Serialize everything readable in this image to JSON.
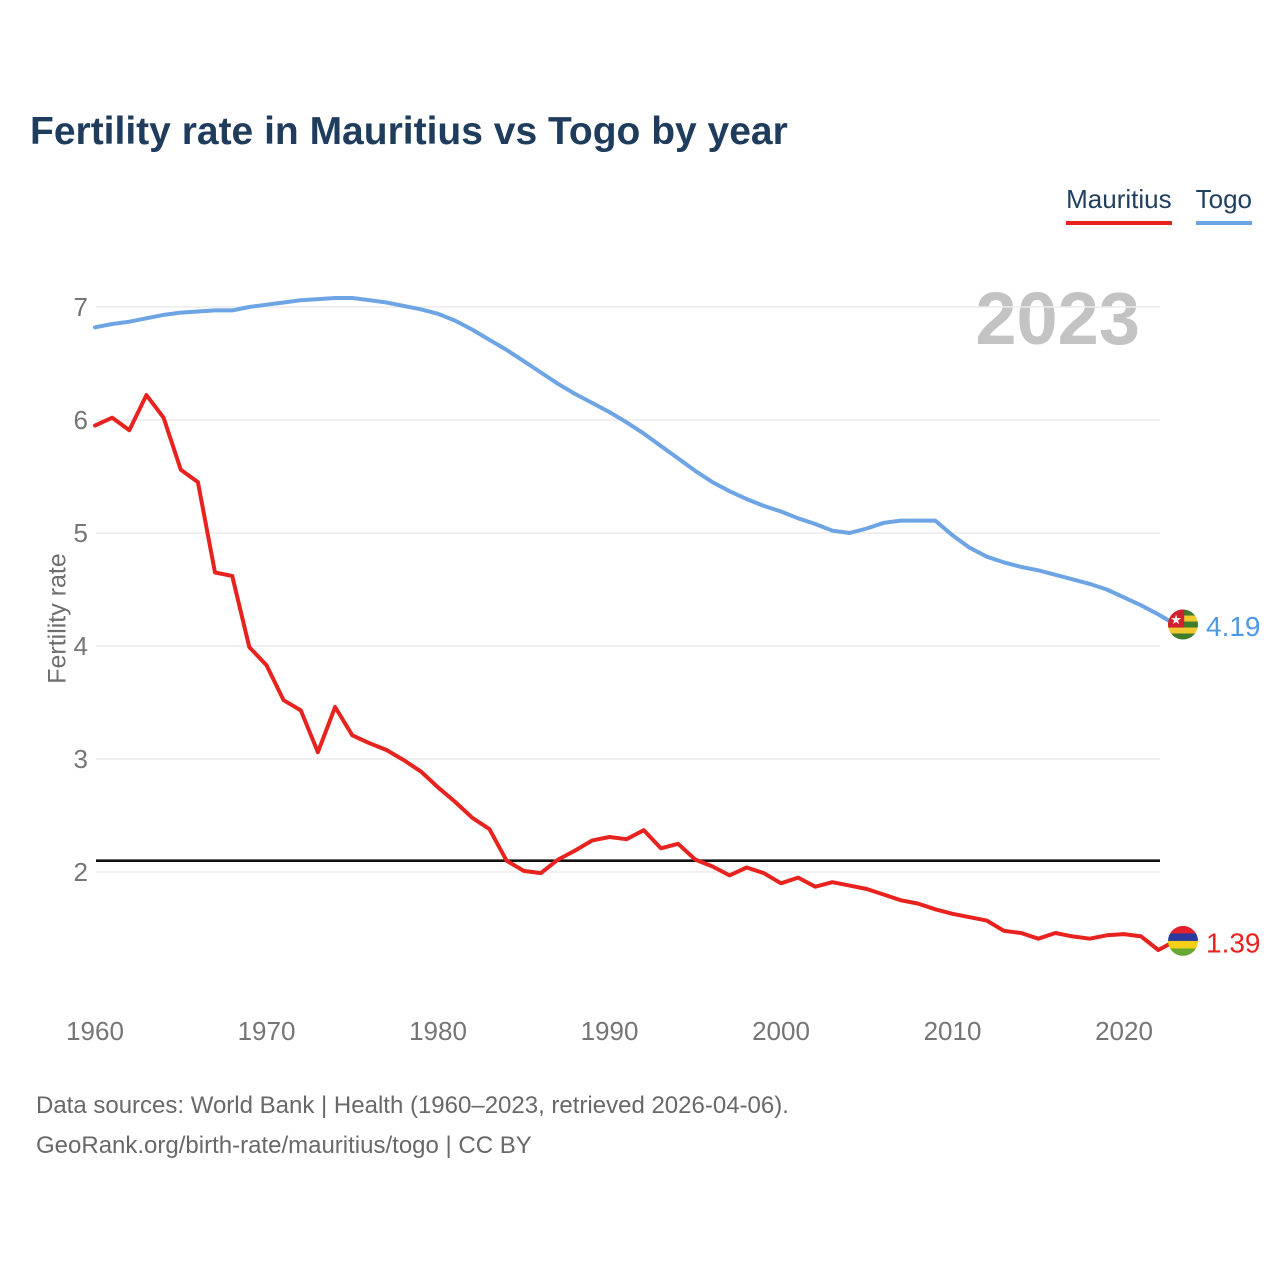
{
  "header": {
    "title": "Fertility rate in Mauritius vs Togo by year"
  },
  "legend": {
    "items": [
      {
        "label": "Mauritius",
        "color": "#e8231f"
      },
      {
        "label": "Togo",
        "color": "#6ca4e4"
      }
    ]
  },
  "footer": {
    "line1": "Data sources: World Bank | Health (1960–2023, retrieved 2026-04-06).",
    "line2": "GeoRank.org/birth-rate/mauritius/togo | CC BY"
  },
  "flags": {
    "mauritius": {
      "stripes": [
        "#e4222d",
        "#2b3a9e",
        "#f5d018",
        "#67a832"
      ]
    },
    "togo": {
      "stripes": [
        "#3d7d2c",
        "#f0c832",
        "#3d7d2c",
        "#f0c832",
        "#3d7d2c"
      ],
      "canton": "#d0202e",
      "star": "#ffffff"
    }
  },
  "chart_data": {
    "type": "line",
    "title": "Fertility rate in Mauritius vs Togo by year",
    "xlabel": "",
    "ylabel": "Fertility rate",
    "watermark": "2023",
    "legend_position": "top-right",
    "grid": "horizontal",
    "xlim": [
      1960,
      2023
    ],
    "ylim": [
      1.2,
      7.3
    ],
    "x_ticks": [
      1960,
      1970,
      1980,
      1990,
      2000,
      2010,
      2020
    ],
    "y_ticks": [
      7,
      6,
      5,
      4,
      3,
      2
    ],
    "reference_line": {
      "value": 2.1,
      "color": "#111111"
    },
    "years": [
      1960,
      1961,
      1962,
      1963,
      1964,
      1965,
      1966,
      1967,
      1968,
      1969,
      1970,
      1971,
      1972,
      1973,
      1974,
      1975,
      1976,
      1977,
      1978,
      1979,
      1980,
      1981,
      1982,
      1983,
      1984,
      1985,
      1986,
      1987,
      1988,
      1989,
      1990,
      1991,
      1992,
      1993,
      1994,
      1995,
      1996,
      1997,
      1998,
      1999,
      2000,
      2001,
      2002,
      2003,
      2004,
      2005,
      2006,
      2007,
      2008,
      2009,
      2010,
      2011,
      2012,
      2013,
      2014,
      2015,
      2016,
      2017,
      2018,
      2019,
      2020,
      2021,
      2022,
      2023
    ],
    "series": [
      {
        "name": "Togo",
        "color": "#6ca4e4",
        "label_color": "#4c99e6",
        "end_label": "4.19",
        "flag": "togo",
        "values": [
          6.82,
          6.85,
          6.87,
          6.9,
          6.93,
          6.95,
          6.96,
          6.97,
          6.97,
          7.0,
          7.02,
          7.04,
          7.06,
          7.07,
          7.08,
          7.08,
          7.06,
          7.04,
          7.01,
          6.98,
          6.94,
          6.88,
          6.8,
          6.71,
          6.62,
          6.52,
          6.42,
          6.32,
          6.23,
          6.15,
          6.07,
          5.98,
          5.88,
          5.77,
          5.66,
          5.55,
          5.45,
          5.37,
          5.3,
          5.24,
          5.19,
          5.13,
          5.08,
          5.02,
          5.0,
          5.04,
          5.09,
          5.11,
          5.11,
          5.11,
          4.98,
          4.87,
          4.79,
          4.74,
          4.7,
          4.67,
          4.63,
          4.59,
          4.55,
          4.5,
          4.43,
          4.36,
          4.28,
          4.19
        ]
      },
      {
        "name": "Mauritius",
        "color": "#e8231f",
        "label_color": "#e8231f",
        "end_label": "1.39",
        "flag": "mauritius",
        "values": [
          5.95,
          6.02,
          5.91,
          6.22,
          6.02,
          5.56,
          5.45,
          4.65,
          4.62,
          3.99,
          3.83,
          3.52,
          3.43,
          3.06,
          3.46,
          3.21,
          3.14,
          3.08,
          2.99,
          2.89,
          2.75,
          2.62,
          2.48,
          2.38,
          2.1,
          2.01,
          1.99,
          2.11,
          2.19,
          2.28,
          2.31,
          2.29,
          2.37,
          2.21,
          2.25,
          2.11,
          2.05,
          1.97,
          2.04,
          1.99,
          1.9,
          1.95,
          1.87,
          1.91,
          1.88,
          1.85,
          1.8,
          1.75,
          1.72,
          1.67,
          1.63,
          1.6,
          1.57,
          1.48,
          1.46,
          1.41,
          1.46,
          1.43,
          1.41,
          1.44,
          1.45,
          1.43,
          1.31,
          1.39
        ]
      }
    ]
  }
}
